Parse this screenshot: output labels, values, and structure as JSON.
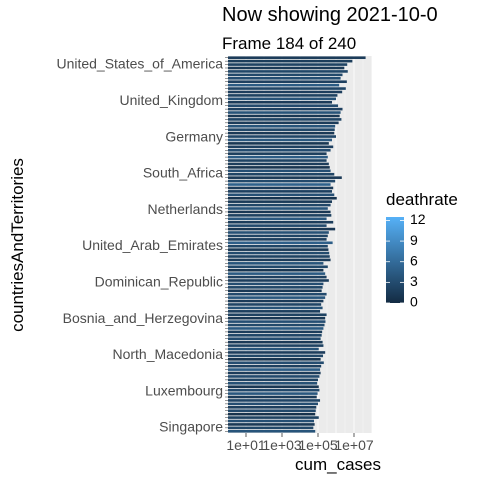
{
  "chart_data": {
    "type": "bar",
    "orientation": "horizontal",
    "title": "Now showing 2021-10-0",
    "subtitle": "Frame 184 of 240",
    "xlabel": "cum_cases",
    "ylabel": "countriesAndTerritories",
    "x_scale": "log10",
    "xlim": [
      1,
      100000000
    ],
    "x_ticks": [
      "1e+01",
      "1e+03",
      "1e+05",
      "1e+07"
    ],
    "x_tick_values": [
      10,
      1000,
      100000,
      10000000
    ],
    "legend": {
      "title": "deathrate",
      "ticks": [
        0,
        3,
        6,
        9,
        12
      ],
      "range": [
        0,
        12.5
      ],
      "colors": {
        "low": "#132B43",
        "high": "#56B1F7"
      }
    },
    "visible_country_labels": [
      "United_States_of_America",
      "United_Kingdom",
      "Germany",
      "South_Africa",
      "Netherlands",
      "United_Arab_Emirates",
      "Dominican_Republic",
      "Bosnia_and_Herzegovina",
      "North_Macedonia",
      "Luxembourg",
      "Singapore"
    ],
    "series": [
      {
        "name": "cum_cases",
        "values": [
          44000000,
          8100000,
          4200000,
          2900000,
          4500000,
          2300000,
          1800000,
          4000000,
          1500000,
          3500000,
          2200000,
          1200000,
          1000000,
          600000,
          1300000,
          2300000,
          1800000,
          1600000,
          2000000,
          1400000,
          900000,
          850000,
          800000,
          1000000,
          600000,
          400000,
          700000,
          500000,
          300000,
          350000,
          300000,
          400000,
          450000,
          500000,
          800000,
          2100000,
          900000,
          500000,
          700000,
          600000,
          800000,
          1100000,
          600000,
          500000,
          350000,
          500000,
          550000,
          300000,
          700000,
          300000,
          900000,
          400000,
          350000,
          300000,
          650000,
          350000,
          380000,
          420000,
          450000,
          500000,
          200000,
          350000,
          200000,
          250000,
          300000,
          400000,
          200000,
          180000,
          160000,
          300000,
          250000,
          200000,
          150000,
          180000,
          130000,
          300000,
          250000,
          260000,
          230000,
          200000,
          170000,
          160000,
          140000,
          180000,
          200000,
          110000,
          250000,
          190000,
          140000,
          210000,
          150000,
          130000,
          140000,
          120000,
          100000,
          90000,
          110000,
          120000,
          95000,
          85000,
          130000,
          100000,
          80000,
          75000,
          70000,
          110000,
          60000,
          65000,
          55000,
          70000
        ]
      },
      {
        "name": "deathrate",
        "values": [
          1.6,
          1.7,
          2.2,
          1.4,
          2.6,
          2.8,
          3.2,
          2.0,
          4.5,
          2.4,
          1.8,
          2.1,
          3.6,
          1.5,
          2.9,
          2.0,
          3.7,
          1.1,
          2.3,
          1.6,
          3.9,
          2.7,
          1.3,
          2.5,
          4.2,
          1.2,
          2.0,
          3.1,
          1.9,
          4.6,
          2.2,
          1.7,
          0.9,
          3.3,
          2.4,
          1.4,
          2.8,
          5.0,
          1.6,
          2.0,
          3.4,
          0.8,
          1.5,
          2.6,
          3.8,
          1.2,
          2.1,
          4.1,
          1.7,
          2.9,
          1.1,
          3.5,
          2.3,
          1.9,
          4.8,
          2.5,
          1.4,
          3.0,
          2.2,
          1.6,
          3.9,
          2.7,
          1.0,
          4.4,
          2.0,
          1.8,
          3.2,
          2.6,
          1.3,
          2.9,
          4.0,
          1.5,
          2.4,
          3.6,
          1.9,
          2.1,
          1.2,
          3.3,
          2.8,
          4.3,
          1.7,
          2.5,
          3.0,
          1.4,
          2.2,
          3.7,
          1.8,
          2.6,
          0.9,
          3.1,
          2.0,
          4.6,
          1.6,
          2.9,
          2.3,
          3.5,
          1.1,
          2.7,
          4.1,
          1.5,
          2.4,
          3.2,
          1.9,
          2.8,
          0.7,
          2.1,
          3.4,
          1.3,
          2.6,
          3.8
        ]
      }
    ]
  }
}
